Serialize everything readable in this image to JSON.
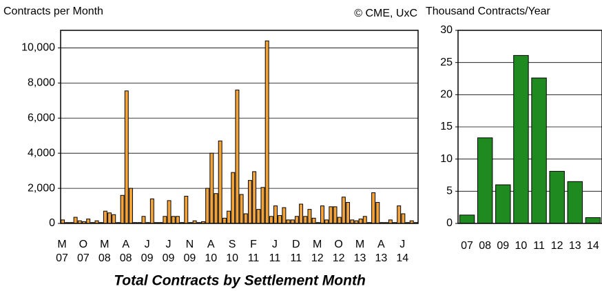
{
  "chart_data": [
    {
      "type": "bar",
      "title": "Total Contracts by Settlement Month",
      "y_label": "Contracts per Month",
      "source": "© CME, UxC",
      "color": "#f2a33a",
      "grid": true,
      "ylim": [
        0,
        11000
      ],
      "yticks": [
        0,
        {
          "value": 2000,
          "label": "2,000"
        },
        {
          "value": 4000,
          "label": "4,000"
        },
        {
          "value": 6000,
          "label": "6,000"
        },
        {
          "value": 8000,
          "label": "8,000"
        },
        {
          "value": 10000,
          "label": "10,000"
        }
      ],
      "categories": [
        "M 07",
        null,
        null,
        null,
        null,
        "O 07",
        null,
        null,
        null,
        null,
        "M 08",
        null,
        null,
        null,
        null,
        "A 08",
        null,
        null,
        null,
        null,
        "J 09",
        null,
        null,
        null,
        null,
        "J 09",
        null,
        null,
        null,
        null,
        "N 09",
        null,
        null,
        null,
        null,
        "A 10",
        null,
        null,
        null,
        null,
        "S 10",
        null,
        null,
        null,
        null,
        "F 11",
        null,
        null,
        null,
        null,
        "J 11",
        null,
        null,
        null,
        null,
        "D 11",
        null,
        null,
        null,
        null,
        "M 12",
        null,
        null,
        null,
        null,
        "O 12",
        null,
        null,
        null,
        null,
        "M 13",
        null,
        null,
        null,
        null,
        "A 13",
        null,
        null,
        null,
        null,
        "J 14",
        null,
        null,
        null
      ],
      "values": [
        200,
        50,
        50,
        350,
        150,
        100,
        250,
        50,
        150,
        50,
        700,
        600,
        500,
        50,
        1600,
        7550,
        2000,
        50,
        50,
        400,
        50,
        1400,
        50,
        50,
        400,
        1300,
        400,
        400,
        50,
        1550,
        50,
        150,
        50,
        100,
        2000,
        4000,
        1700,
        4700,
        300,
        700,
        2900,
        7600,
        1650,
        550,
        2450,
        2950,
        800,
        2050,
        10400,
        400,
        1000,
        450,
        900,
        200,
        200,
        400,
        1100,
        400,
        800,
        300,
        50,
        1000,
        200,
        950,
        950,
        350,
        1500,
        1200,
        200,
        150,
        250,
        400,
        50,
        1750,
        1200,
        50,
        50,
        200,
        50,
        1000,
        550,
        50,
        150,
        50
      ]
    },
    {
      "type": "bar",
      "y_label": "Thousand Contracts/Year",
      "color": "#1f8a1f",
      "grid": true,
      "ylim": [
        0,
        30
      ],
      "yticks": [
        0,
        5,
        10,
        15,
        20,
        25,
        30
      ],
      "categories": [
        "07",
        "08",
        "09",
        "10",
        "11",
        "12",
        "13",
        "14"
      ],
      "values": [
        1.3,
        13.3,
        6,
        26.1,
        22.6,
        8.1,
        6.5,
        0.9
      ]
    }
  ]
}
